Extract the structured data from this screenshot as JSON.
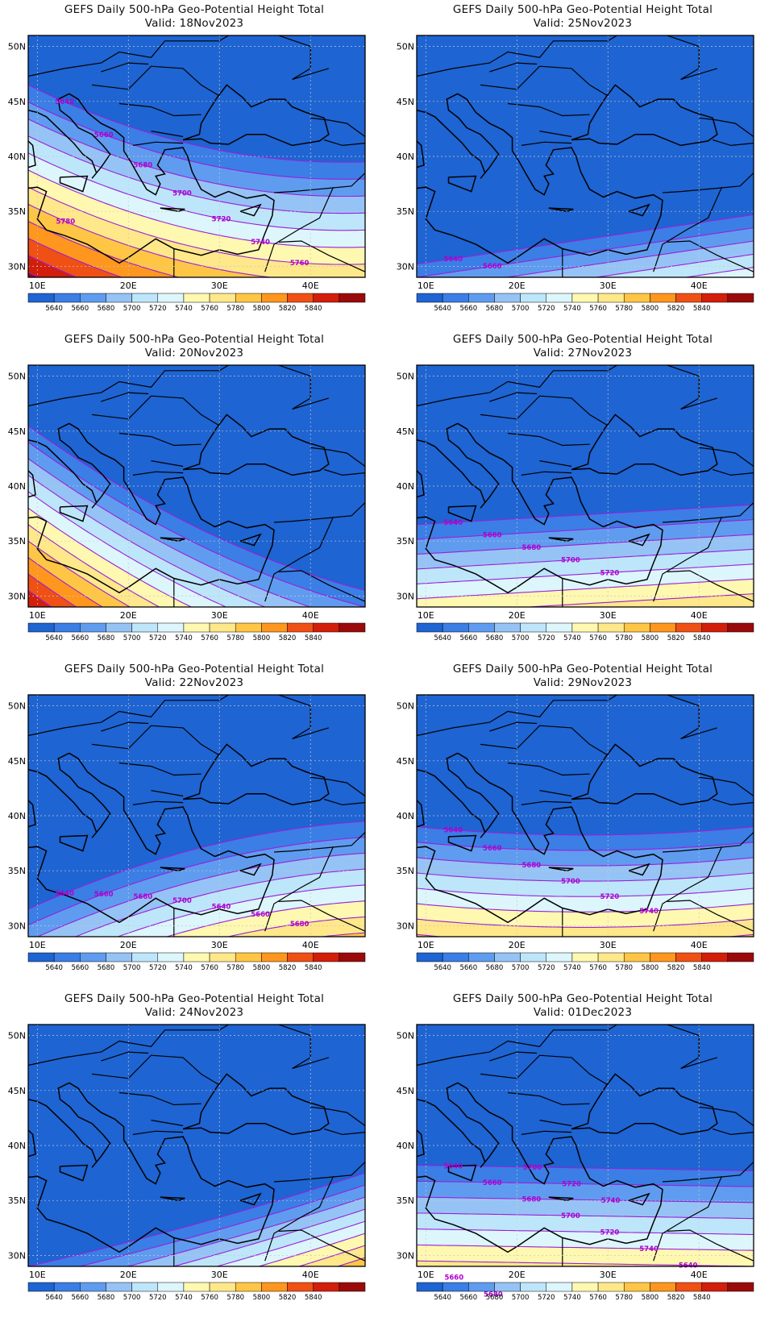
{
  "title": "GEFS Daily 500-hPa Geo-Potential Height Total",
  "valid_prefix": "Valid:",
  "lat_labels": [
    "50N",
    "45N",
    "40N",
    "35N",
    "30N"
  ],
  "lon_labels": [
    "10E",
    "20E",
    "30E",
    "40E"
  ],
  "colorbar": {
    "levels": [
      "5640",
      "5660",
      "5680",
      "5700",
      "5720",
      "5740",
      "5760",
      "5780",
      "5800",
      "5820",
      "5840"
    ],
    "colors": [
      "#1e64d2",
      "#3a7ee6",
      "#5f9cf0",
      "#96c3f5",
      "#bde6fa",
      "#dcf6fc",
      "#fff8b0",
      "#ffe88a",
      "#ffc646",
      "#ff961e",
      "#f05014",
      "#d21e0a",
      "#9b0a0a"
    ]
  },
  "panels": [
    {
      "valid": "18Nov2023",
      "labels": [
        "5640",
        "5660",
        "5680",
        "5700",
        "5720",
        "5740",
        "5760",
        "5780"
      ]
    },
    {
      "valid": "25Nov2023",
      "labels": [
        "5640",
        "5660"
      ]
    },
    {
      "valid": "20Nov2023",
      "labels": []
    },
    {
      "valid": "27Nov2023",
      "labels": [
        "5640",
        "5660",
        "5680",
        "5700",
        "5720"
      ]
    },
    {
      "valid": "22Nov2023",
      "labels": [
        "5640",
        "5660",
        "5680",
        "5700",
        "5640",
        "5660",
        "5680"
      ]
    },
    {
      "valid": "29Nov2023",
      "labels": [
        "5640",
        "5660",
        "5680",
        "5700",
        "5720",
        "5740"
      ]
    },
    {
      "valid": "24Nov2023",
      "labels": []
    },
    {
      "valid": "01Dec2023",
      "labels": [
        "5640",
        "5660",
        "5680",
        "5700",
        "5720",
        "5740",
        "5640",
        "5660",
        "5680",
        "5700",
        "5720",
        "5740"
      ]
    }
  ]
}
